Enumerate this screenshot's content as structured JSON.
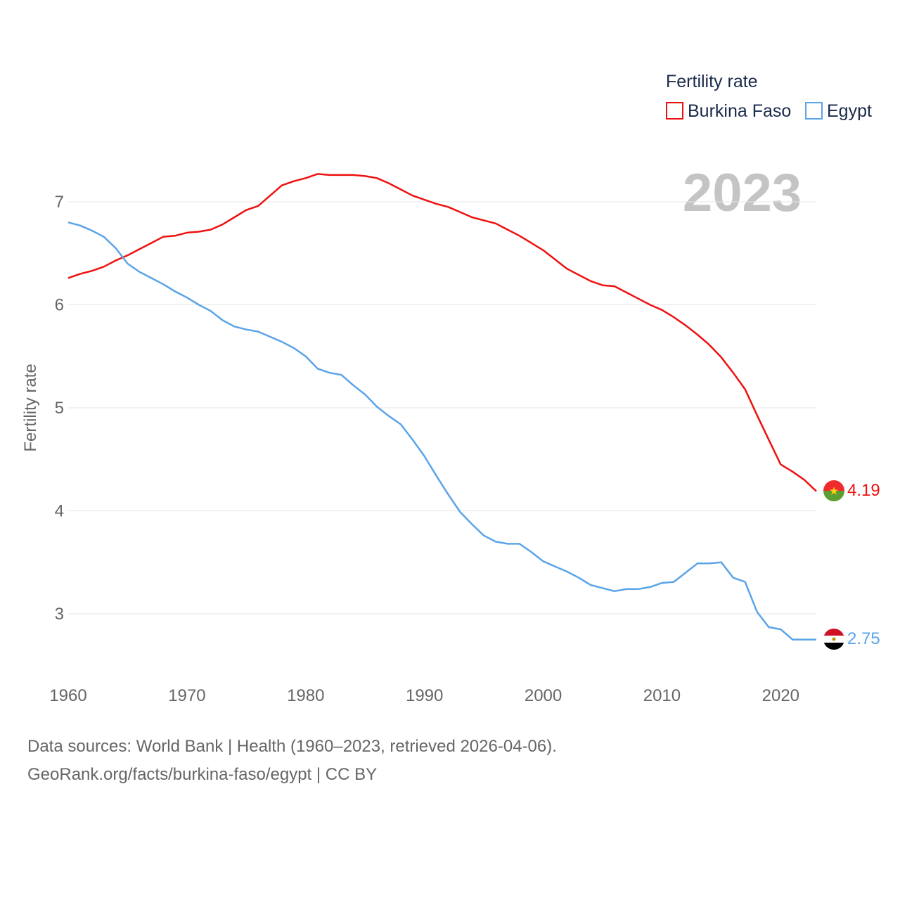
{
  "colors": {
    "burkina": "#ee1111",
    "egypt": "#5ba4e8",
    "grid": "#e6e6e6",
    "axis_text": "#666666",
    "legend_text": "#1a2a4a",
    "year_label": "#c4c4c4"
  },
  "chart_data": {
    "type": "line",
    "title": "",
    "xlabel": "",
    "ylabel": "Fertility rate",
    "xlim": [
      1960,
      2023
    ],
    "ylim": [
      2.45,
      7.45
    ],
    "x_ticks": [
      1960,
      1970,
      1980,
      1990,
      2000,
      2010,
      2020
    ],
    "y_ticks": [
      3,
      4,
      5,
      6,
      7
    ],
    "legend": {
      "title": "Fertility rate",
      "position": "top-right"
    },
    "year_label": "2023",
    "x": [
      1960,
      1961,
      1962,
      1963,
      1964,
      1965,
      1966,
      1967,
      1968,
      1969,
      1970,
      1971,
      1972,
      1973,
      1974,
      1975,
      1976,
      1977,
      1978,
      1979,
      1980,
      1981,
      1982,
      1983,
      1984,
      1985,
      1986,
      1987,
      1988,
      1989,
      1990,
      1991,
      1992,
      1993,
      1994,
      1995,
      1996,
      1997,
      1998,
      1999,
      2000,
      2001,
      2002,
      2003,
      2004,
      2005,
      2006,
      2007,
      2008,
      2009,
      2010,
      2011,
      2012,
      2013,
      2014,
      2015,
      2016,
      2017,
      2018,
      2019,
      2020,
      2021,
      2022,
      2023
    ],
    "series": [
      {
        "name": "Burkina Faso",
        "color": "#ee1111",
        "end_label": "4.19",
        "values": [
          6.26,
          6.3,
          6.33,
          6.37,
          6.43,
          6.48,
          6.54,
          6.6,
          6.66,
          6.67,
          6.7,
          6.71,
          6.73,
          6.78,
          6.85,
          6.92,
          6.96,
          7.06,
          7.16,
          7.2,
          7.23,
          7.27,
          7.26,
          7.26,
          7.26,
          7.25,
          7.23,
          7.18,
          7.12,
          7.06,
          7.02,
          6.98,
          6.95,
          6.9,
          6.85,
          6.82,
          6.79,
          6.73,
          6.67,
          6.6,
          6.53,
          6.44,
          6.35,
          6.29,
          6.23,
          6.19,
          6.18,
          6.12,
          6.06,
          6.0,
          5.95,
          5.88,
          5.8,
          5.71,
          5.61,
          5.49,
          5.34,
          5.18,
          4.93,
          4.69,
          4.45,
          4.38,
          4.3,
          4.19
        ]
      },
      {
        "name": "Egypt",
        "color": "#5ba4e8",
        "end_label": "2.75",
        "values": [
          6.8,
          6.77,
          6.72,
          6.66,
          6.55,
          6.4,
          6.32,
          6.26,
          6.2,
          6.13,
          6.07,
          6.0,
          5.94,
          5.85,
          5.79,
          5.76,
          5.74,
          5.69,
          5.64,
          5.58,
          5.5,
          5.38,
          5.34,
          5.32,
          5.22,
          5.13,
          5.01,
          4.92,
          4.84,
          4.69,
          4.53,
          4.34,
          4.16,
          3.99,
          3.87,
          3.76,
          3.7,
          3.68,
          3.68,
          3.6,
          3.51,
          3.46,
          3.41,
          3.35,
          3.28,
          3.25,
          3.22,
          3.24,
          3.24,
          3.26,
          3.3,
          3.31,
          3.4,
          3.49,
          3.49,
          3.5,
          3.35,
          3.31,
          3.02,
          2.87,
          2.85,
          2.75,
          2.75,
          2.75
        ]
      }
    ]
  },
  "footer": {
    "line1": "Data sources: World Bank | Health (1960–2023, retrieved 2026-04-06).",
    "line2": "GeoRank.org/facts/burkina-faso/egypt | CC BY"
  }
}
